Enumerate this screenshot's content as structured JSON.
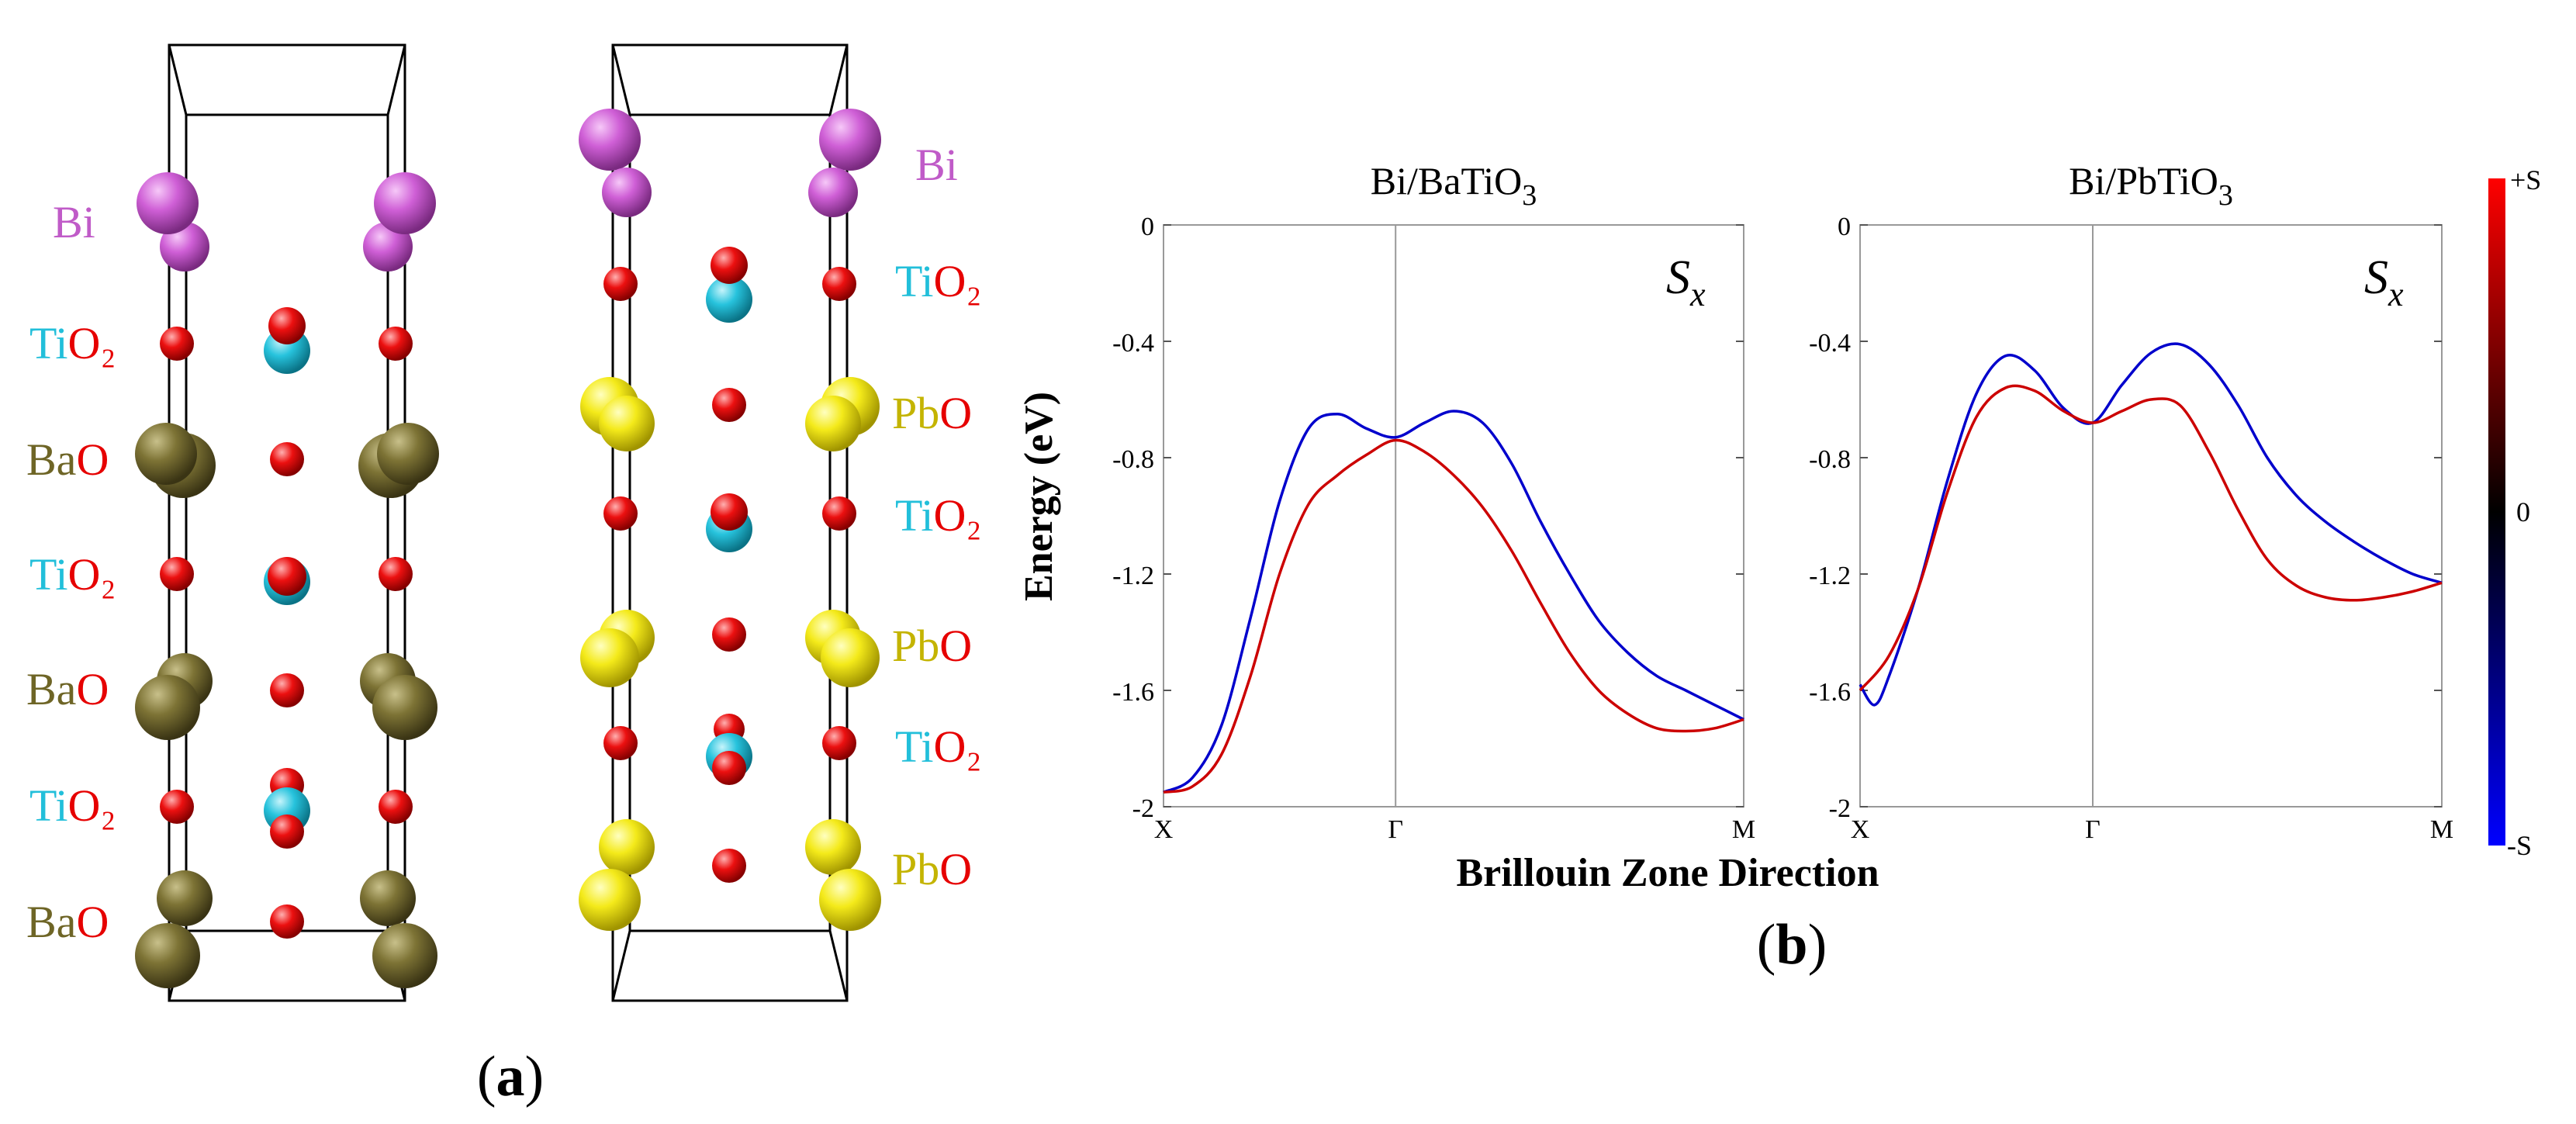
{
  "panel_a": {
    "caption_open": "(",
    "caption_letter": "a",
    "caption_close": ")",
    "left_structure": {
      "layers": [
        {
          "prefix": "Bi",
          "suffix": ""
        },
        {
          "prefix": "Ti",
          "suffix": "O₂"
        },
        {
          "prefix": "Ba",
          "suffix": "O"
        },
        {
          "prefix": "Ti",
          "suffix": "O₂"
        },
        {
          "prefix": "Ba",
          "suffix": "O"
        },
        {
          "prefix": "Ti",
          "suffix": "O₂"
        },
        {
          "prefix": "Ba",
          "suffix": "O"
        }
      ]
    },
    "right_structure": {
      "layers": [
        {
          "prefix": "Bi",
          "suffix": ""
        },
        {
          "prefix": "Ti",
          "suffix": "O₂"
        },
        {
          "prefix": "Pb",
          "suffix": "O"
        },
        {
          "prefix": "Ti",
          "suffix": "O₂"
        },
        {
          "prefix": "Pb",
          "suffix": "O"
        },
        {
          "prefix": "Ti",
          "suffix": "O₂"
        },
        {
          "prefix": "Pb",
          "suffix": "O"
        }
      ]
    }
  },
  "panel_b": {
    "caption_open": "(",
    "caption_letter": "b",
    "caption_close": ")",
    "ylabel": "Energy (eV)",
    "xlabel": "Brillouin Zone Direction",
    "colorbar": {
      "top": "+S",
      "middle": "0",
      "bottom": "-S",
      "colors": [
        "#ff0000",
        "#000000",
        "#0000ff"
      ]
    }
  },
  "chart_data": [
    {
      "type": "line",
      "title_main": "Bi/BaTiO",
      "title_sub": "3",
      "annotation": "S",
      "annotation_sub": "x",
      "ylim": [
        -2,
        0
      ],
      "yticks": [
        "0",
        "-0.4",
        "-0.8",
        "-1.2",
        "-1.6",
        "-2"
      ],
      "ytick_values": [
        0,
        -0.4,
        -0.8,
        -1.2,
        -1.6,
        -2
      ],
      "xlim": [
        0,
        2
      ],
      "xticks": [
        "X",
        "Γ",
        "M"
      ],
      "xtick_values": [
        0,
        0.8,
        2
      ],
      "series": [
        {
          "name": "blue",
          "color": "#0000cc",
          "x": [
            0,
            0.1,
            0.2,
            0.3,
            0.4,
            0.5,
            0.6,
            0.7,
            0.8,
            0.9,
            1.0,
            1.1,
            1.2,
            1.3,
            1.4,
            1.5,
            1.6,
            1.7,
            1.8,
            1.9,
            2.0
          ],
          "y": [
            -1.95,
            -1.9,
            -1.72,
            -1.35,
            -0.95,
            -0.7,
            -0.65,
            -0.7,
            -0.73,
            -0.68,
            -0.64,
            -0.68,
            -0.82,
            -1.02,
            -1.2,
            -1.36,
            -1.47,
            -1.55,
            -1.6,
            -1.65,
            -1.7
          ]
        },
        {
          "name": "red",
          "color": "#cc0000",
          "x": [
            0,
            0.1,
            0.2,
            0.3,
            0.4,
            0.5,
            0.6,
            0.7,
            0.8,
            0.9,
            1.0,
            1.1,
            1.2,
            1.3,
            1.4,
            1.5,
            1.6,
            1.7,
            1.8,
            1.9,
            2.0
          ],
          "y": [
            -1.95,
            -1.93,
            -1.82,
            -1.55,
            -1.2,
            -0.96,
            -0.86,
            -0.79,
            -0.74,
            -0.78,
            -0.86,
            -0.97,
            -1.12,
            -1.3,
            -1.47,
            -1.6,
            -1.68,
            -1.73,
            -1.74,
            -1.73,
            -1.7
          ]
        }
      ]
    },
    {
      "type": "line",
      "title_main": "Bi/PbTiO",
      "title_sub": "3",
      "annotation": "S",
      "annotation_sub": "x",
      "ylim": [
        -2,
        0
      ],
      "yticks": [
        "0",
        "-0.4",
        "-0.8",
        "-1.2",
        "-1.6",
        "-2"
      ],
      "ytick_values": [
        0,
        -0.4,
        -0.8,
        -1.2,
        -1.6,
        -2
      ],
      "xlim": [
        0,
        2
      ],
      "xticks": [
        "X",
        "Γ",
        "M"
      ],
      "xtick_values": [
        0,
        0.8,
        2
      ],
      "series": [
        {
          "name": "blue",
          "color": "#0000cc",
          "x": [
            0,
            0.05,
            0.1,
            0.2,
            0.3,
            0.4,
            0.5,
            0.6,
            0.7,
            0.8,
            0.9,
            1.0,
            1.1,
            1.2,
            1.3,
            1.4,
            1.5,
            1.6,
            1.7,
            1.8,
            1.9,
            2.0
          ],
          "y": [
            -1.58,
            -1.65,
            -1.55,
            -1.25,
            -0.88,
            -0.58,
            -0.45,
            -0.5,
            -0.63,
            -0.68,
            -0.55,
            -0.44,
            -0.41,
            -0.48,
            -0.62,
            -0.8,
            -0.93,
            -1.02,
            -1.09,
            -1.15,
            -1.2,
            -1.23
          ]
        },
        {
          "name": "red",
          "color": "#cc0000",
          "x": [
            0,
            0.1,
            0.2,
            0.3,
            0.4,
            0.5,
            0.6,
            0.7,
            0.8,
            0.9,
            1.0,
            1.1,
            1.2,
            1.3,
            1.4,
            1.5,
            1.6,
            1.7,
            1.8,
            1.9,
            2.0
          ],
          "y": [
            -1.6,
            -1.48,
            -1.25,
            -0.92,
            -0.66,
            -0.56,
            -0.57,
            -0.64,
            -0.68,
            -0.64,
            -0.6,
            -0.62,
            -0.78,
            -0.98,
            -1.15,
            -1.24,
            -1.28,
            -1.29,
            -1.28,
            -1.26,
            -1.23
          ]
        }
      ]
    }
  ]
}
